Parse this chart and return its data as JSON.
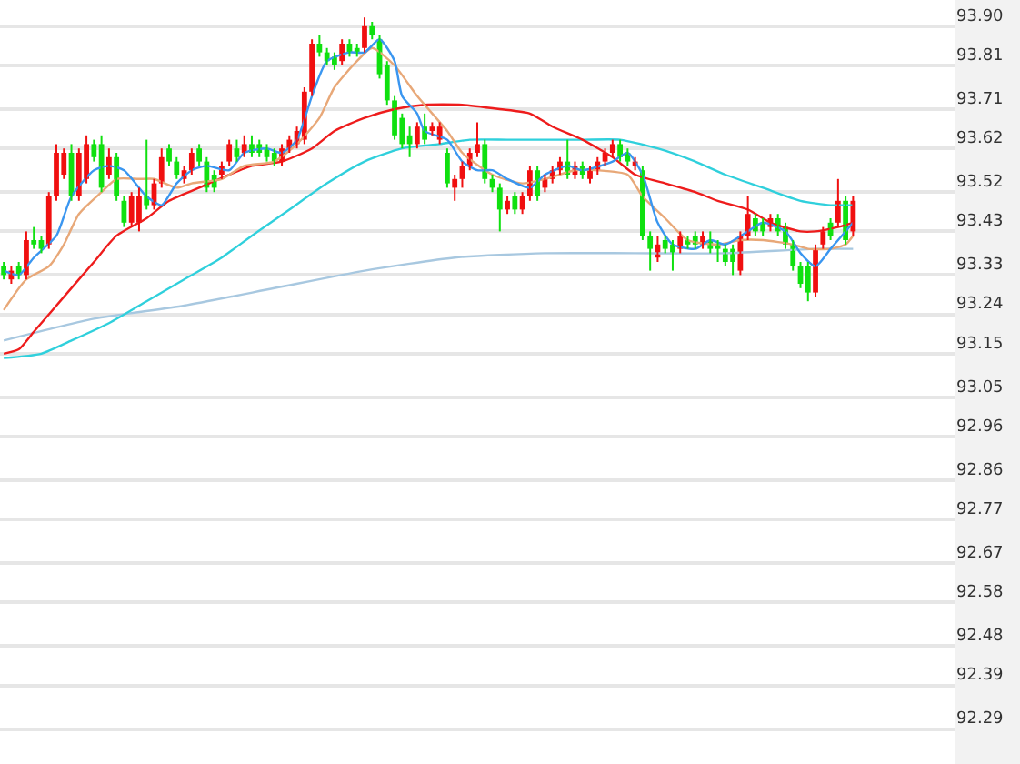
{
  "chart_data": {
    "type": "candlestick",
    "categories": [
      null,
      null,
      null,
      null,
      null,
      null,
      null,
      null,
      null,
      null,
      null,
      null,
      null,
      null,
      null,
      null,
      null,
      null,
      null,
      null,
      null,
      null,
      null,
      null,
      null,
      null,
      null,
      null,
      null,
      null,
      null,
      null,
      null,
      null,
      null,
      null,
      null,
      null,
      null,
      null,
      null,
      null,
      null,
      null,
      null,
      null,
      null,
      null,
      null,
      null,
      null,
      null,
      null,
      null,
      null,
      null,
      null,
      null,
      null,
      null,
      null,
      null,
      null,
      null,
      null,
      null,
      null,
      null,
      null,
      null,
      null,
      null,
      null,
      null,
      null,
      null,
      null,
      null,
      null,
      null,
      null,
      null,
      null,
      null,
      null,
      null,
      null,
      null,
      null,
      null,
      null,
      null,
      null,
      null,
      null,
      null,
      null,
      null,
      null,
      null,
      null,
      null,
      null,
      null,
      null,
      null,
      null,
      null,
      null,
      null,
      null,
      null,
      null,
      null,
      null,
      null,
      null,
      null,
      null,
      null,
      null,
      null,
      null,
      null,
      null,
      null,
      null
    ],
    "ohlc": [
      [
        93.35,
        93.36,
        93.32,
        93.33
      ],
      [
        93.32,
        93.35,
        93.31,
        93.34
      ],
      [
        93.35,
        93.36,
        93.32,
        93.33
      ],
      [
        93.33,
        93.43,
        93.32,
        93.41
      ],
      [
        93.41,
        93.44,
        93.39,
        93.4
      ],
      [
        93.41,
        93.42,
        93.38,
        93.39
      ],
      [
        93.4,
        93.52,
        93.39,
        93.51
      ],
      [
        93.51,
        93.63,
        93.5,
        93.61
      ],
      [
        93.56,
        93.62,
        93.55,
        93.61
      ],
      [
        93.61,
        93.63,
        93.5,
        93.51
      ],
      [
        93.51,
        93.62,
        93.5,
        93.61
      ],
      [
        93.55,
        93.65,
        93.54,
        93.63
      ],
      [
        93.63,
        93.64,
        93.59,
        93.6
      ],
      [
        93.63,
        93.65,
        93.52,
        93.53
      ],
      [
        93.56,
        93.62,
        93.55,
        93.6
      ],
      [
        93.6,
        93.61,
        93.5,
        93.51
      ],
      [
        93.5,
        93.51,
        93.44,
        93.45
      ],
      [
        93.45,
        93.52,
        93.44,
        93.51
      ],
      [
        93.45,
        93.53,
        93.43,
        93.51
      ],
      [
        93.51,
        93.64,
        93.48,
        93.49
      ],
      [
        93.49,
        93.55,
        93.48,
        93.54
      ],
      [
        93.54,
        93.62,
        93.53,
        93.6
      ],
      [
        93.62,
        93.63,
        93.58,
        93.59
      ],
      [
        93.59,
        93.6,
        93.55,
        93.56
      ],
      [
        93.55,
        93.58,
        93.54,
        93.57
      ],
      [
        93.57,
        93.62,
        93.56,
        93.61
      ],
      [
        93.62,
        93.63,
        93.58,
        93.59
      ],
      [
        93.59,
        93.6,
        93.52,
        93.53
      ],
      [
        93.56,
        93.57,
        93.52,
        93.53
      ],
      [
        93.56,
        93.59,
        93.55,
        93.58
      ],
      [
        93.59,
        93.64,
        93.58,
        93.63
      ],
      [
        93.62,
        93.64,
        93.59,
        93.6
      ],
      [
        93.61,
        93.65,
        93.6,
        93.63
      ],
      [
        93.63,
        93.65,
        93.6,
        93.61
      ],
      [
        93.63,
        93.64,
        93.6,
        93.61
      ],
      [
        93.62,
        93.63,
        93.59,
        93.6
      ],
      [
        93.61,
        93.62,
        93.58,
        93.59
      ],
      [
        93.59,
        93.63,
        93.58,
        93.62
      ],
      [
        93.62,
        93.65,
        93.61,
        93.64
      ],
      [
        93.63,
        93.67,
        93.62,
        93.66
      ],
      [
        93.64,
        93.76,
        93.63,
        93.75
      ],
      [
        93.75,
        93.87,
        93.74,
        93.86
      ],
      [
        93.86,
        93.88,
        93.83,
        93.84
      ],
      [
        93.84,
        93.85,
        93.81,
        93.82
      ],
      [
        93.83,
        93.84,
        93.8,
        93.81
      ],
      [
        93.82,
        93.87,
        93.81,
        93.86
      ],
      [
        93.86,
        93.87,
        93.83,
        93.84
      ],
      [
        93.85,
        93.86,
        93.83,
        93.84
      ],
      [
        93.85,
        93.92,
        93.84,
        93.9
      ],
      [
        93.9,
        93.91,
        93.87,
        93.88
      ],
      [
        93.87,
        93.88,
        93.78,
        93.79
      ],
      [
        93.81,
        93.82,
        93.72,
        93.73
      ],
      [
        93.73,
        93.74,
        93.64,
        93.65
      ],
      [
        93.69,
        93.7,
        93.62,
        93.63
      ],
      [
        93.65,
        93.67,
        93.6,
        93.63
      ],
      [
        93.63,
        93.68,
        93.62,
        93.67
      ],
      [
        93.67,
        93.7,
        93.63,
        93.64
      ],
      [
        93.66,
        93.68,
        93.65,
        93.67
      ],
      [
        93.64,
        93.68,
        93.63,
        93.67
      ],
      [
        93.61,
        93.62,
        93.53,
        93.54
      ],
      [
        93.53,
        93.56,
        93.5,
        93.55
      ],
      [
        93.55,
        93.59,
        93.53,
        93.58
      ],
      [
        93.58,
        93.62,
        93.57,
        93.61
      ],
      [
        93.61,
        93.68,
        93.6,
        93.63
      ],
      [
        93.63,
        93.64,
        93.54,
        93.55
      ],
      [
        93.55,
        93.56,
        93.52,
        93.53
      ],
      [
        93.53,
        93.54,
        93.43,
        93.48
      ],
      [
        93.48,
        93.51,
        93.47,
        93.5
      ],
      [
        93.51,
        93.52,
        93.47,
        93.48
      ],
      [
        93.48,
        93.52,
        93.47,
        93.51
      ],
      [
        93.51,
        93.58,
        93.5,
        93.57
      ],
      [
        93.57,
        93.58,
        93.5,
        93.51
      ],
      [
        93.53,
        93.56,
        93.52,
        93.55
      ],
      [
        93.55,
        93.58,
        93.54,
        93.57
      ],
      [
        93.57,
        93.6,
        93.56,
        93.59
      ],
      [
        93.59,
        93.64,
        93.55,
        93.56
      ],
      [
        93.56,
        93.59,
        93.55,
        93.58
      ],
      [
        93.58,
        93.59,
        93.55,
        93.56
      ],
      [
        93.55,
        93.58,
        93.54,
        93.57
      ],
      [
        93.57,
        93.6,
        93.56,
        93.59
      ],
      [
        93.59,
        93.62,
        93.58,
        93.61
      ],
      [
        93.61,
        93.64,
        93.6,
        93.63
      ],
      [
        93.63,
        93.64,
        93.59,
        93.6
      ],
      [
        93.61,
        93.62,
        93.58,
        93.59
      ],
      [
        93.58,
        93.6,
        93.57,
        93.59
      ],
      [
        93.57,
        93.58,
        93.41,
        93.42
      ],
      [
        93.42,
        93.43,
        93.34,
        93.39
      ],
      [
        93.37,
        93.42,
        93.36,
        93.4
      ],
      [
        93.41,
        93.42,
        93.38,
        93.39
      ],
      [
        93.4,
        93.41,
        93.34,
        93.38
      ],
      [
        93.39,
        93.43,
        93.38,
        93.42
      ],
      [
        93.41,
        93.42,
        93.39,
        93.4
      ],
      [
        93.42,
        93.43,
        93.39,
        93.4
      ],
      [
        93.4,
        93.43,
        93.39,
        93.42
      ],
      [
        93.41,
        93.43,
        93.38,
        93.39
      ],
      [
        93.4,
        93.41,
        93.36,
        93.39
      ],
      [
        93.39,
        93.4,
        93.35,
        93.36
      ],
      [
        93.39,
        93.4,
        93.33,
        93.36
      ],
      [
        93.34,
        93.43,
        93.33,
        93.42
      ],
      [
        93.42,
        93.51,
        93.41,
        93.47
      ],
      [
        93.46,
        93.47,
        93.42,
        93.43
      ],
      [
        93.45,
        93.46,
        93.42,
        93.43
      ],
      [
        93.44,
        93.47,
        93.43,
        93.46
      ],
      [
        93.46,
        93.47,
        93.42,
        93.43
      ],
      [
        93.44,
        93.45,
        93.39,
        93.4
      ],
      [
        93.4,
        93.41,
        93.34,
        93.35
      ],
      [
        93.35,
        93.36,
        93.3,
        93.31
      ],
      [
        93.35,
        93.36,
        93.27,
        93.29
      ],
      [
        93.29,
        93.4,
        93.28,
        93.39
      ],
      [
        93.4,
        93.44,
        93.39,
        93.43
      ],
      [
        93.45,
        93.46,
        93.41,
        93.42
      ],
      [
        93.45,
        93.55,
        93.44,
        93.5
      ],
      [
        93.5,
        93.51,
        93.4,
        93.41
      ],
      [
        93.43,
        93.51,
        93.42,
        93.5
      ],
      null,
      null,
      null,
      null,
      null,
      null,
      null,
      null,
      null,
      null,
      null,
      null,
      null
    ],
    "colors": [
      "#10e010",
      "#f01010",
      "#10e010",
      "#f01010",
      "#10e010",
      "#10e010",
      "#f01010",
      "#f01010",
      "#f01010",
      "#10e010",
      "#f01010",
      "#f01010",
      "#10e010",
      "#10e010",
      "#f01010",
      "#10e010",
      "#10e010",
      "#f01010",
      "#f01010",
      "#10e010",
      "#f01010",
      "#f01010",
      "#10e010",
      "#10e010",
      "#f01010",
      "#f01010",
      "#10e010",
      "#10e010",
      "#10e010",
      "#f01010",
      "#f01010",
      "#10e010",
      "#f01010",
      "#10e010",
      "#10e010",
      "#10e010",
      "#10e010",
      "#f01010",
      "#f01010",
      "#f01010",
      "#f01010",
      "#f01010",
      "#10e010",
      "#10e010",
      "#10e010",
      "#f01010",
      "#10e010",
      "#10e010",
      "#f01010",
      "#10e010",
      "#10e010",
      "#10e010",
      "#10e010",
      "#10e010",
      "#10e010",
      "#f01010",
      "#10e010",
      "#f01010",
      "#f01010",
      "#10e010",
      "#f01010",
      "#f01010",
      "#f01010",
      "#f01010",
      "#10e010",
      "#10e010",
      "#10e010",
      "#f01010",
      "#10e010",
      "#f01010",
      "#f01010",
      "#10e010",
      "#f01010",
      "#f01010",
      "#f01010",
      "#10e010",
      "#f01010",
      "#10e010",
      "#f01010",
      "#f01010",
      "#f01010",
      "#f01010",
      "#10e010",
      "#10e010",
      "#f01010",
      "#10e010",
      "#10e010",
      "#f01010",
      "#10e010",
      "#10e010",
      "#f01010",
      "#10e010",
      "#10e010",
      "#f01010",
      "#10e010",
      "#10e010",
      "#10e010",
      "#10e010",
      "#f01010",
      "#f01010",
      "#10e010",
      "#10e010",
      "#f01010",
      "#10e010",
      "#10e010",
      "#10e010",
      "#10e010",
      "#10e010",
      "#f01010",
      "#f01010",
      "#10e010",
      "#f01010",
      "#10e010",
      "#f01010",
      null,
      null,
      null,
      null,
      null,
      null,
      null,
      null,
      null,
      null,
      null,
      null,
      null
    ],
    "series": [
      {
        "type": "line",
        "color": "#a8c8e0",
        "values": [
          93.18,
          null,
          null,
          null,
          null,
          null,
          null,
          null,
          null,
          null,
          null,
          null,
          93.23,
          null,
          null,
          null,
          null,
          null,
          null,
          null,
          null,
          null,
          null,
          null,
          93.26,
          null,
          null,
          null,
          null,
          null,
          null,
          null,
          null,
          null,
          null,
          null,
          93.3,
          null,
          null,
          null,
          null,
          null,
          null,
          null,
          null,
          null,
          null,
          null,
          93.34,
          null,
          null,
          null,
          null,
          null,
          null,
          null,
          null,
          null,
          null,
          null,
          93.37,
          null,
          null,
          null,
          null,
          null,
          null,
          null,
          null,
          null,
          null,
          null,
          93.38,
          null,
          null,
          null,
          null,
          null,
          null,
          null,
          null,
          null,
          null,
          null,
          93.38,
          null,
          null,
          null,
          null,
          null,
          null,
          null,
          null,
          null,
          null,
          null,
          93.38,
          null,
          null,
          null,
          null,
          null,
          null,
          null,
          null,
          null,
          null,
          null,
          93.39,
          null,
          null,
          null,
          null,
          93.39,
          null,
          null,
          null,
          null,
          null,
          null,
          null,
          null,
          null,
          null,
          null,
          null,
          null
        ]
      },
      {
        "type": "line",
        "color": "#30d0dc",
        "values": [
          93.14,
          null,
          null,
          null,
          null,
          93.15,
          null,
          null,
          null,
          93.18,
          null,
          null,
          null,
          null,
          93.22,
          null,
          null,
          null,
          null,
          93.27,
          null,
          null,
          null,
          null,
          93.32,
          null,
          null,
          null,
          null,
          93.37,
          null,
          null,
          null,
          93.42,
          null,
          null,
          null,
          null,
          93.48,
          null,
          null,
          null,
          null,
          93.54,
          null,
          null,
          null,
          null,
          93.59,
          null,
          null,
          null,
          null,
          93.62,
          null,
          null,
          null,
          null,
          93.63,
          null,
          null,
          null,
          93.64,
          null,
          null,
          null,
          null,
          93.64,
          null,
          null,
          null,
          null,
          93.64,
          null,
          null,
          null,
          null,
          93.64,
          null,
          null,
          null,
          null,
          93.64,
          null,
          null,
          null,
          null,
          93.62,
          null,
          null,
          null,
          null,
          93.59,
          null,
          null,
          null,
          93.56,
          null,
          null,
          null,
          null,
          93.53,
          null,
          null,
          null,
          null,
          93.5,
          null,
          null,
          null,
          93.49,
          null,
          null,
          93.49,
          null,
          null,
          null,
          null,
          null,
          null,
          null,
          null,
          null,
          null,
          null,
          null,
          null
        ]
      },
      {
        "type": "line",
        "color": "#ee1c1c",
        "values": [
          93.15,
          null,
          93.16,
          null,
          93.2,
          null,
          null,
          null,
          93.28,
          null,
          null,
          null,
          93.36,
          null,
          null,
          93.42,
          null,
          null,
          null,
          93.46,
          null,
          null,
          93.5,
          null,
          null,
          null,
          93.53,
          null,
          null,
          null,
          93.56,
          null,
          null,
          93.58,
          null,
          null,
          null,
          93.59,
          null,
          null,
          null,
          93.62,
          null,
          null,
          93.66,
          null,
          null,
          null,
          93.69,
          null,
          null,
          null,
          93.71,
          null,
          null,
          null,
          93.72,
          null,
          null,
          null,
          null,
          93.72,
          null,
          null,
          null,
          null,
          93.71,
          null,
          null,
          null,
          93.7,
          null,
          null,
          93.67,
          null,
          null,
          null,
          93.64,
          null,
          null,
          null,
          93.6,
          null,
          null,
          93.56,
          null,
          null,
          null,
          93.54,
          null,
          null,
          null,
          93.52,
          null,
          null,
          93.5,
          null,
          null,
          null,
          93.48,
          null,
          null,
          93.45,
          null,
          null,
          null,
          93.43,
          null,
          93.43,
          null,
          null,
          93.44,
          null,
          93.45,
          null,
          null,
          null,
          null,
          null,
          null,
          null,
          null,
          null,
          null,
          null,
          null,
          null
        ]
      },
      {
        "type": "line",
        "color": "#e8a878",
        "values": [
          93.25,
          null,
          null,
          93.32,
          null,
          null,
          93.35,
          null,
          93.4,
          null,
          93.47,
          null,
          null,
          93.52,
          null,
          93.55,
          null,
          null,
          93.55,
          null,
          93.55,
          null,
          null,
          93.53,
          null,
          93.54,
          null,
          null,
          null,
          93.55,
          null,
          null,
          93.58,
          null,
          null,
          null,
          93.59,
          null,
          null,
          93.63,
          null,
          null,
          93.69,
          null,
          93.76,
          null,
          null,
          93.82,
          null,
          93.85,
          null,
          null,
          93.81,
          null,
          null,
          93.74,
          null,
          null,
          null,
          93.66,
          null,
          93.61,
          null,
          null,
          null,
          93.56,
          null,
          null,
          null,
          93.54,
          null,
          null,
          93.55,
          null,
          null,
          null,
          93.57,
          null,
          null,
          93.57,
          null,
          null,
          null,
          93.56,
          null,
          93.51,
          null,
          null,
          93.46,
          null,
          null,
          93.41,
          null,
          null,
          null,
          93.4,
          null,
          null,
          93.41,
          null,
          null,
          93.41,
          null,
          null,
          null,
          93.4,
          null,
          93.39,
          null,
          null,
          93.39,
          null,
          93.4,
          93.42,
          null,
          null,
          null,
          null,
          null,
          null,
          null,
          null,
          null,
          null,
          null,
          null,
          null
        ]
      },
      {
        "type": "line",
        "color": "#3a96f0",
        "values": [
          93.34,
          null,
          93.33,
          null,
          93.37,
          null,
          null,
          93.42,
          null,
          93.51,
          null,
          null,
          93.57,
          null,
          93.58,
          null,
          93.57,
          null,
          null,
          93.51,
          null,
          93.49,
          null,
          93.54,
          null,
          93.57,
          null,
          93.58,
          null,
          null,
          93.57,
          null,
          93.61,
          null,
          null,
          93.62,
          null,
          93.61,
          null,
          93.64,
          null,
          93.74,
          null,
          93.82,
          null,
          null,
          93.84,
          null,
          93.84,
          null,
          93.87,
          null,
          93.82,
          93.74,
          null,
          93.7,
          93.66,
          null,
          null,
          93.64,
          null,
          93.59,
          null,
          93.57,
          null,
          93.57,
          null,
          93.55,
          null,
          null,
          93.53,
          null,
          93.56,
          null,
          null,
          93.58,
          null,
          93.57,
          null,
          null,
          null,
          93.59,
          null,
          93.61,
          null,
          93.56,
          null,
          93.45,
          null,
          93.4,
          null,
          null,
          93.39,
          null,
          93.41,
          null,
          93.4,
          null,
          null,
          93.43,
          null,
          93.45,
          null,
          null,
          93.43,
          null,
          93.38,
          null,
          93.35,
          null,
          93.39,
          93.41,
          null,
          93.45,
          null,
          null,
          null,
          null,
          null,
          null,
          null,
          null,
          null,
          null,
          null,
          null,
          null
        ]
      }
    ],
    "ylim": [
      92.21,
      93.96
    ],
    "yticks": [
      {
        "value": 93.9,
        "label": "93.90"
      },
      93.81,
      93.71,
      93.62,
      93.52,
      93.43,
      93.33,
      93.24,
      93.15,
      93.05,
      92.96,
      92.86,
      92.77,
      92.67,
      92.58,
      92.48,
      92.39,
      92.29
    ],
    "tick_labels": "y",
    "grid": "y"
  }
}
